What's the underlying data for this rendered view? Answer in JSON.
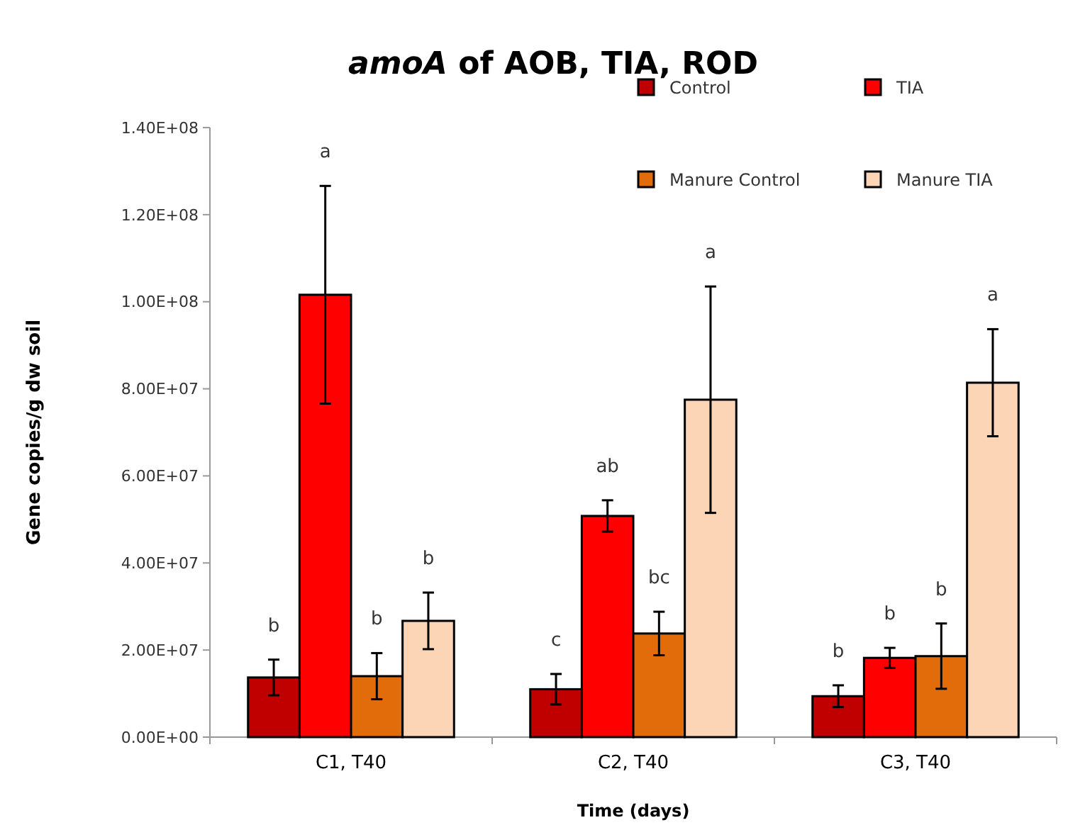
{
  "chart_data": {
    "type": "bar",
    "title": "amoA of AOB, TIA, ROD",
    "xlabel": "Time (days)",
    "ylabel": "Gene copies/g dw soil",
    "categories": [
      "C1, T40",
      "C2, T40",
      "C3, T40"
    ],
    "series": [
      {
        "name": "Control",
        "color": "#c00000",
        "values": [
          13700000,
          11000000,
          9400000
        ],
        "errors": [
          4100000,
          3500000,
          2500000
        ]
      },
      {
        "name": "TIA",
        "color": "#ff0000",
        "values": [
          101600000,
          50800000,
          18200000
        ],
        "errors": [
          25000000,
          3600000,
          2300000
        ]
      },
      {
        "name": "Manure Control",
        "color": "#e36c0a",
        "values": [
          14000000,
          23800000,
          18600000
        ],
        "errors": [
          5300000,
          5000000,
          7500000
        ]
      },
      {
        "name": "Manure TIA",
        "color": "#fbd5b5",
        "values": [
          26700000,
          77500000,
          81400000
        ],
        "errors": [
          6500000,
          26000000,
          12300000
        ]
      }
    ],
    "annotations": [
      "b",
      "a",
      "b",
      "b",
      "c",
      "ab",
      "bc",
      "a",
      "b",
      "b",
      "b",
      "a"
    ],
    "ylim": [
      0,
      140000000
    ],
    "yticks": [
      {
        "value": 0,
        "label": "0.00E+00"
      },
      {
        "value": 20000000,
        "label": "2.00E+07"
      },
      {
        "value": 40000000,
        "label": "4.00E+07"
      },
      {
        "value": 60000000,
        "label": "6.00E+07"
      },
      {
        "value": 80000000,
        "label": "8.00E+07"
      },
      {
        "value": 100000000,
        "label": "1.00E+08"
      },
      {
        "value": 120000000,
        "label": "1.20E+08"
      },
      {
        "value": 140000000,
        "label": "1.40E+08"
      }
    ],
    "grid": false,
    "legend": "top right"
  }
}
